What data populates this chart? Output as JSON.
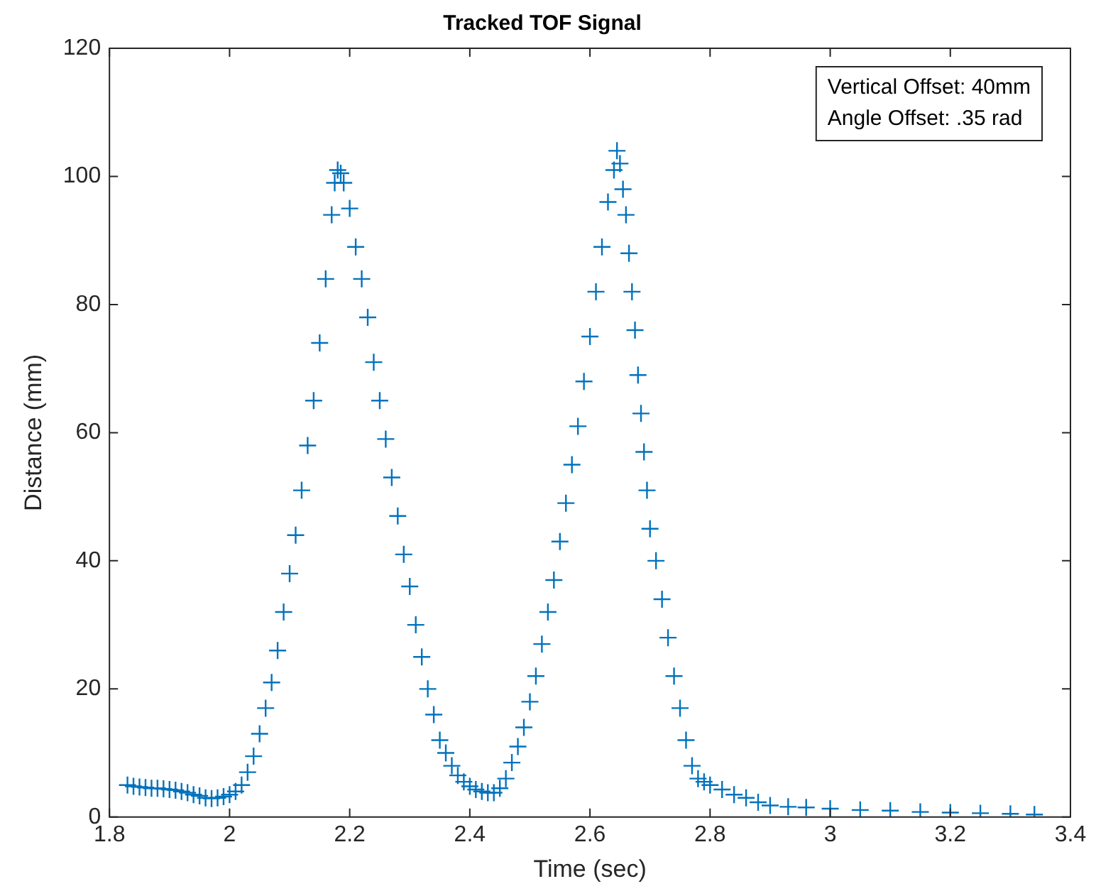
{
  "chart_data": {
    "type": "scatter",
    "title": "Tracked TOF Signal",
    "xlabel": "Time (sec)",
    "ylabel": "Distance (mm)",
    "annotations": [
      "Vertical Offset: 40mm",
      "Angle Offset: .35 rad"
    ],
    "xlim": [
      1.8,
      3.4
    ],
    "xticks": [
      1.8,
      2,
      2.2,
      2.4,
      2.6,
      2.8,
      3,
      3.2,
      3.4
    ],
    "ylim": [
      0,
      120
    ],
    "yticks": [
      0,
      20,
      40,
      60,
      80,
      100,
      120
    ],
    "grid": false,
    "legend": false,
    "marker": "cross",
    "series": [
      {
        "color": "#0072bd",
        "x": [
          1.83,
          1.84,
          1.85,
          1.86,
          1.87,
          1.88,
          1.89,
          1.9,
          1.91,
          1.92,
          1.93,
          1.94,
          1.95,
          1.96,
          1.97,
          1.98,
          1.99,
          2.0,
          2.01,
          2.02,
          2.03,
          2.04,
          2.05,
          2.06,
          2.07,
          2.08,
          2.09,
          2.1,
          2.11,
          2.12,
          2.13,
          2.14,
          2.15,
          2.16,
          2.17,
          2.175,
          2.18,
          2.185,
          2.19,
          2.2,
          2.21,
          2.22,
          2.23,
          2.24,
          2.25,
          2.26,
          2.27,
          2.28,
          2.29,
          2.3,
          2.31,
          2.32,
          2.33,
          2.34,
          2.35,
          2.36,
          2.37,
          2.38,
          2.39,
          2.4,
          2.41,
          2.42,
          2.43,
          2.44,
          2.45,
          2.46,
          2.47,
          2.48,
          2.49,
          2.5,
          2.51,
          2.52,
          2.53,
          2.54,
          2.55,
          2.56,
          2.57,
          2.58,
          2.59,
          2.6,
          2.61,
          2.62,
          2.63,
          2.64,
          2.645,
          2.65,
          2.655,
          2.66,
          2.665,
          2.67,
          2.675,
          2.68,
          2.685,
          2.69,
          2.695,
          2.7,
          2.71,
          2.72,
          2.73,
          2.74,
          2.75,
          2.76,
          2.77,
          2.78,
          2.79,
          2.8,
          2.82,
          2.84,
          2.86,
          2.88,
          2.9,
          2.93,
          2.96,
          3.0,
          3.05,
          3.1,
          3.15,
          3.2,
          3.25,
          3.3,
          3.34
        ],
        "values": [
          5.0,
          4.8,
          4.7,
          4.6,
          4.5,
          4.5,
          4.4,
          4.3,
          4.2,
          4.0,
          3.8,
          3.5,
          3.3,
          3.0,
          2.9,
          3.0,
          3.2,
          3.5,
          4.0,
          5,
          7,
          9.5,
          13,
          17,
          21,
          26,
          32,
          38,
          44,
          51,
          58,
          65,
          74,
          84,
          94,
          99,
          101,
          100.5,
          99,
          95,
          89,
          84,
          78,
          71,
          65,
          59,
          53,
          47,
          41,
          36,
          30,
          25,
          20,
          16,
          12,
          10,
          8,
          6.5,
          5.5,
          4.8,
          4.3,
          4.0,
          3.8,
          3.8,
          4.5,
          6,
          8.5,
          11,
          14,
          18,
          22,
          27,
          32,
          37,
          43,
          49,
          55,
          61,
          68,
          75,
          82,
          89,
          96,
          101,
          104,
          102,
          98,
          94,
          88,
          82,
          76,
          69,
          63,
          57,
          51,
          45,
          40,
          34,
          28,
          22,
          17,
          12,
          8,
          6,
          5.5,
          5,
          4.3,
          3.5,
          3,
          2.3,
          1.8,
          1.6,
          1.5,
          1.3,
          1.1,
          1.0,
          0.8,
          0.7,
          0.6,
          0.5,
          0.4
        ]
      }
    ]
  }
}
